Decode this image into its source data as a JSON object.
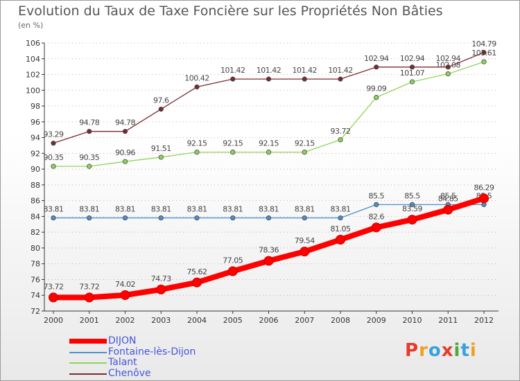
{
  "chart_data": {
    "type": "line",
    "title": "Evolution du Taux de Taxe Foncière sur les Propriétés Non Bâties",
    "subtitle": "(en %)",
    "x": [
      "2000",
      "2001",
      "2002",
      "2003",
      "2004",
      "2005",
      "2006",
      "2007",
      "2008",
      "2009",
      "2010",
      "2011",
      "2012"
    ],
    "ylim": [
      72,
      106
    ],
    "yticks": [
      "72",
      "74",
      "76",
      "78",
      "80",
      "82",
      "84",
      "86",
      "88",
      "90",
      "92",
      "94",
      "96",
      "98",
      "100",
      "102",
      "104",
      "106"
    ],
    "grid": "horizontal dotted",
    "legend_position": "bottom-left",
    "series": [
      {
        "name": "DIJON",
        "color": "#ff0000",
        "values": [
          73.72,
          73.72,
          74.02,
          74.73,
          75.62,
          77.05,
          78.36,
          79.54,
          81.05,
          82.6,
          83.59,
          84.85,
          86.29
        ],
        "labels": [
          "73.72",
          "73.72",
          "74.02",
          "74.73",
          "75.62",
          "77.05",
          "78.36",
          "79.54",
          "81.05",
          "82.6",
          "83.59",
          "84.85",
          "86.29"
        ]
      },
      {
        "name": "Fontaine-lès-Dijon",
        "color": "#4a8fcc",
        "values": [
          83.81,
          83.81,
          83.81,
          83.81,
          83.81,
          83.81,
          83.81,
          83.81,
          83.81,
          85.5,
          85.5,
          85.5,
          85.5
        ],
        "labels": [
          "83.81",
          "83.81",
          "83.81",
          "83.81",
          "83.81",
          "83.81",
          "83.81",
          "83.81",
          "83.81",
          "85.5",
          "85.5",
          "85.5",
          "85.5"
        ]
      },
      {
        "name": "Talant",
        "color": "#8fd45a",
        "values": [
          90.35,
          90.35,
          90.96,
          91.51,
          92.15,
          92.15,
          92.15,
          92.15,
          93.72,
          99.09,
          101.07,
          102.08,
          103.61
        ],
        "labels": [
          "90.35",
          "90.35",
          "90.96",
          "91.51",
          "92.15",
          "92.15",
          "92.15",
          "92.15",
          "93.72",
          "99.09",
          "101.07",
          "102.08",
          "103.61"
        ]
      },
      {
        "name": "Chenôve",
        "color": "#7a2a30",
        "values": [
          93.29,
          94.78,
          94.78,
          97.6,
          100.42,
          101.42,
          101.42,
          101.42,
          101.42,
          102.94,
          102.94,
          102.94,
          104.79
        ],
        "labels": [
          "93.29",
          "94.78",
          "94.78",
          "97.6",
          "100.42",
          "101.42",
          "101.42",
          "101.42",
          "101.42",
          "102.94",
          "102.94",
          "102.94",
          "104.79"
        ]
      }
    ]
  },
  "logo": {
    "text": "Proxiti",
    "colors": [
      "#e83a2a",
      "#f0a020",
      "#3aa0e0",
      "#e83a2a",
      "#4aaa3a",
      "#3aa0e0",
      "#f0a020"
    ]
  }
}
